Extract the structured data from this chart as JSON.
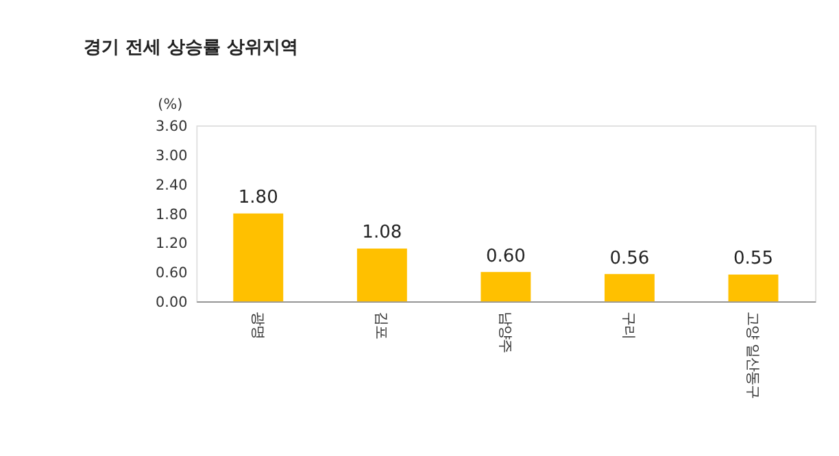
{
  "chart_data": {
    "type": "bar",
    "title": "경기 전세 상승률 상위지역",
    "ylabel": "(%)",
    "categories": [
      "광명",
      "김포",
      "남양주",
      "구리",
      "고양 일산동구"
    ],
    "values": [
      1.8,
      1.08,
      0.6,
      0.56,
      0.55
    ],
    "value_labels": [
      "1.80",
      "1.08",
      "0.60",
      "0.56",
      "0.55"
    ],
    "color": "#ffc000",
    "ylim": [
      0,
      3.6
    ],
    "yticks": [
      {
        "value": 0,
        "label": "0.00"
      },
      {
        "value": 0.6,
        "label": "0.60"
      },
      {
        "value": 1.2,
        "label": "1.20"
      },
      {
        "value": 1.8,
        "label": "1.80"
      },
      {
        "value": 2.4,
        "label": "2.40"
      },
      {
        "value": 3.0,
        "label": "3.00"
      },
      {
        "value": 3.6,
        "label": "3.60"
      }
    ],
    "grid": false
  }
}
